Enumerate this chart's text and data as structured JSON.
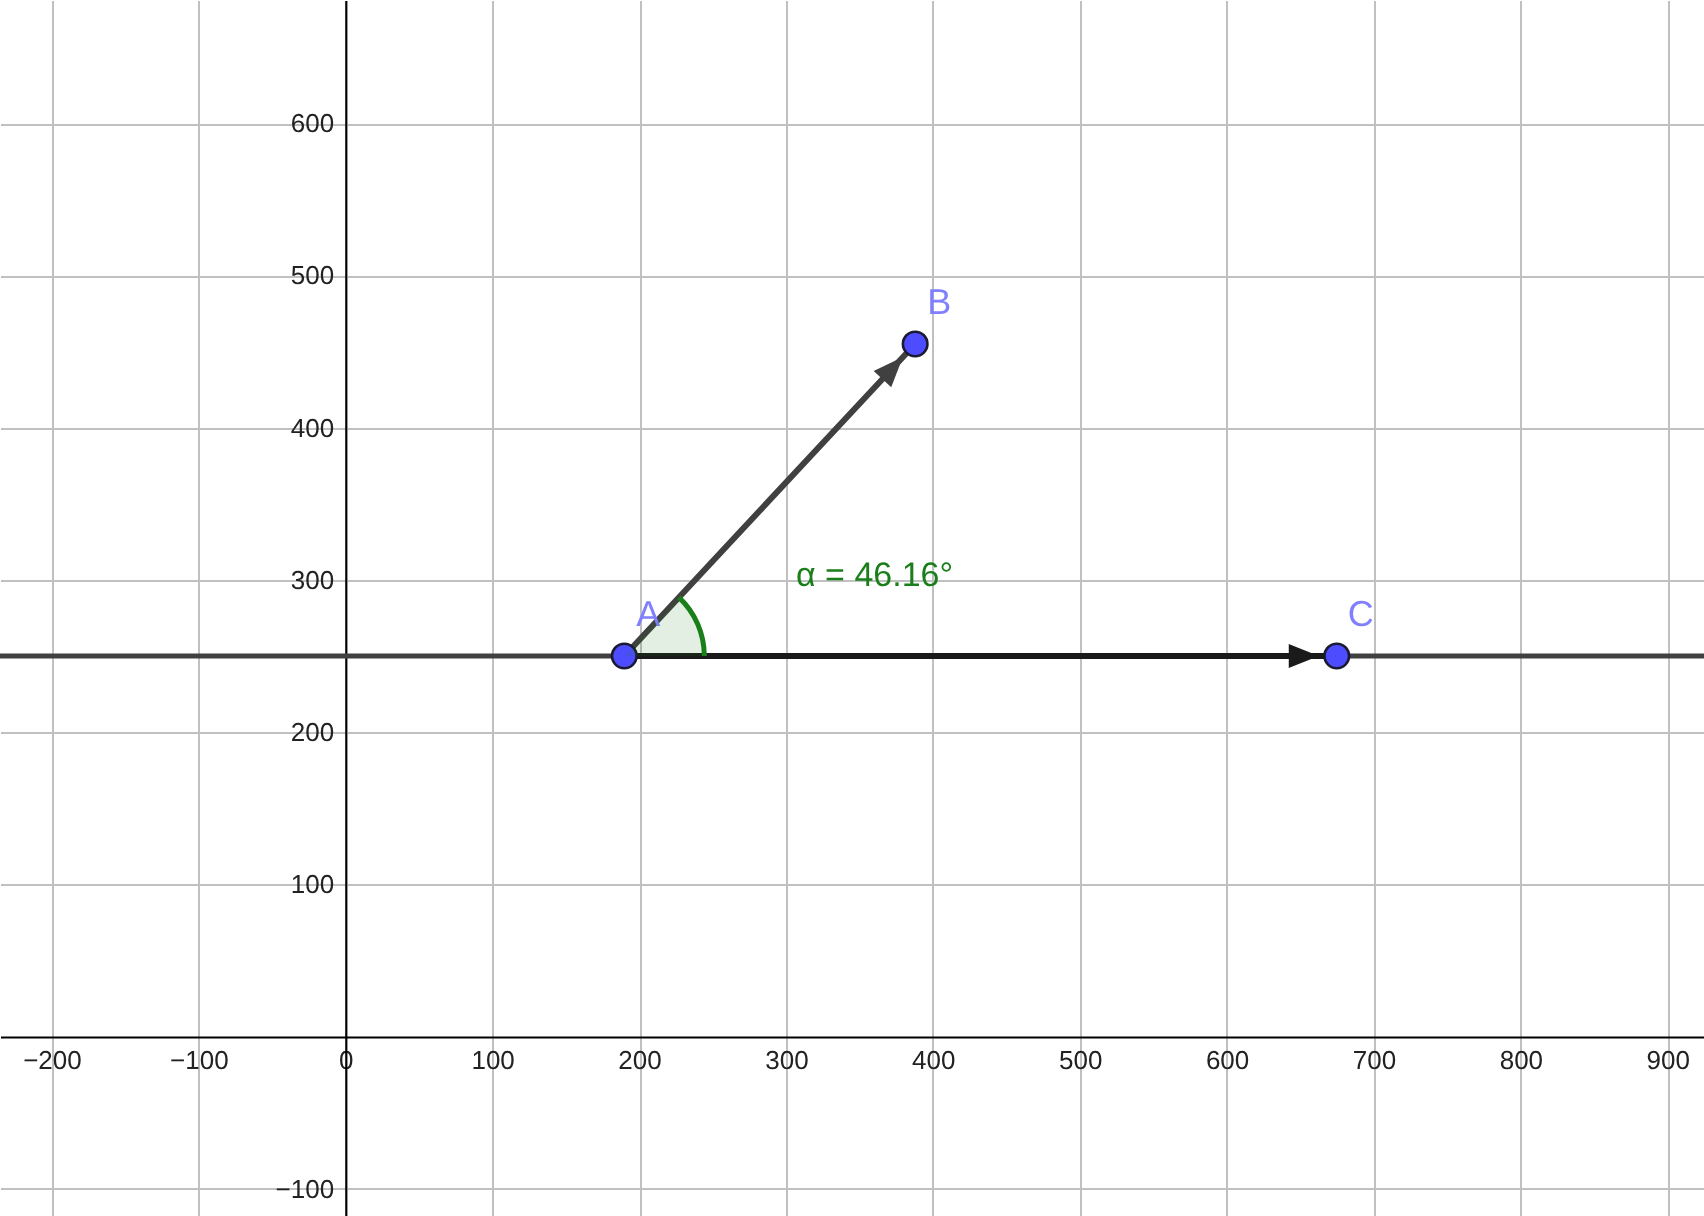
{
  "chart_data": {
    "type": "scatter",
    "xlim": [
      -235,
      925
    ],
    "ylim": [
      -118,
      681
    ],
    "xticks": [
      {
        "value": -200,
        "label": "−200"
      },
      {
        "value": -100,
        "label": "−100"
      },
      0,
      100,
      200,
      300,
      400,
      500,
      600,
      700,
      800,
      900
    ],
    "yticks": [
      {
        "value": -100,
        "label": "−100"
      },
      100,
      200,
      300,
      400,
      500,
      600
    ],
    "grid": true,
    "series": [
      {
        "type": "line",
        "color": "#404040",
        "x": [
          190,
          388
        ],
        "values": [
          250,
          455
        ]
      },
      {
        "type": "line",
        "color": "#1a1a1a",
        "x": [
          190,
          675
        ],
        "values": [
          250,
          250
        ]
      },
      {
        "name": "A",
        "color": "#4d4dff",
        "x": [
          190
        ],
        "values": [
          250
        ]
      },
      {
        "name": "B",
        "color": "#4d4dff",
        "x": [
          388
        ],
        "values": [
          455
        ]
      },
      {
        "name": "C",
        "color": "#4d4dff",
        "x": [
          675
        ],
        "values": [
          250
        ]
      }
    ],
    "ref_lines": [
      {
        "axis": "y",
        "value": 250,
        "color": "#404040"
      }
    ],
    "annotations": [
      "α = 46.16°"
    ]
  }
}
